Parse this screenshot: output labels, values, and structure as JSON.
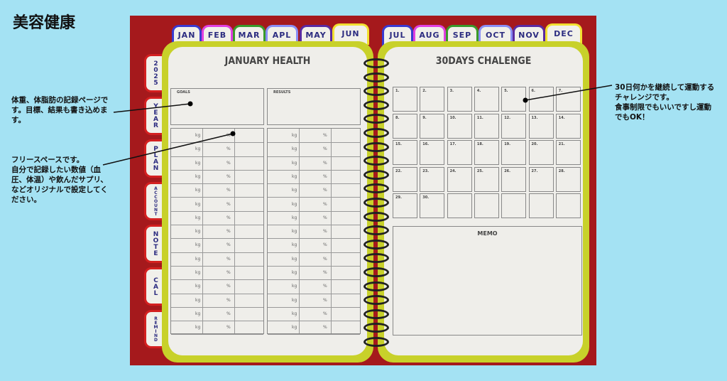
{
  "page_title": "美容健康",
  "tabs_left": [
    {
      "label": "JAN",
      "color": "#3a3ad0"
    },
    {
      "label": "FEB",
      "color": "#e040e0"
    },
    {
      "label": "MAR",
      "color": "#3a9a2a"
    },
    {
      "label": "APL",
      "color": "#8a8ef5"
    },
    {
      "label": "MAY",
      "color": "#5a2aa0"
    },
    {
      "label": "JUN",
      "color": "#f2e030"
    }
  ],
  "tabs_right": [
    {
      "label": "JUL",
      "color": "#3a3ad0"
    },
    {
      "label": "AUG",
      "color": "#e040e0"
    },
    {
      "label": "SEP",
      "color": "#3a9a2a"
    },
    {
      "label": "OCT",
      "color": "#8a8ef5"
    },
    {
      "label": "NOV",
      "color": "#5a2aa0"
    },
    {
      "label": "DEC",
      "color": "#f2e030"
    }
  ],
  "side_tabs": [
    "2025",
    "YEAR",
    "PLAN",
    "ACCOUNT",
    "NOTE",
    "CAL",
    "REMIND"
  ],
  "left_page": {
    "title": "JANUARY HEALTH",
    "goals_label": "GOALS",
    "results_label": "RESULTS",
    "unit_weight": "kg",
    "unit_fat": "%"
  },
  "right_page": {
    "title": "30DAYS CHALENGE",
    "days": [
      "1.",
      "2.",
      "3.",
      "4.",
      "5.",
      "6.",
      "7.",
      "8.",
      "9.",
      "10.",
      "11.",
      "12.",
      "13.",
      "14.",
      "15.",
      "16.",
      "17.",
      "18.",
      "19.",
      "20.",
      "21.",
      "22.",
      "23.",
      "24.",
      "25.",
      "26.",
      "27.",
      "28.",
      "29.",
      "30."
    ],
    "memo_label": "MEMO"
  },
  "annotations": {
    "record": "体重、体脂肪の記録ページです。目標、結果も書き込めます。",
    "free": "フリースペースです。\n自分で記録したい数値（血圧、体温）や飲んだサプリ、などオリジナルで設定してください。",
    "challenge": "30日何かを継続して運動するチャレンジです。\n食事制限でもいいですし運動でもOK！"
  }
}
